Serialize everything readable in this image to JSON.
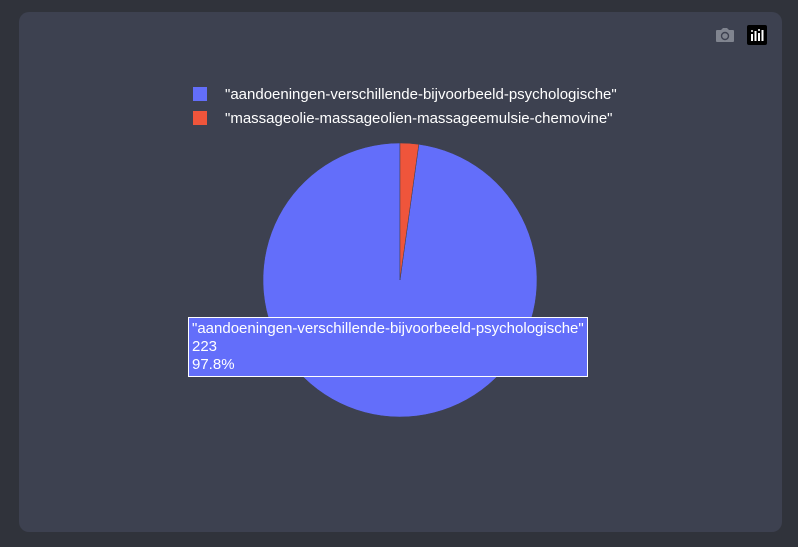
{
  "chart_data": {
    "type": "pie",
    "labels": [
      "\"aandoeningen-verschillende-bijvoorbeeld-psychologische\"",
      "\"massageolie-massageolien-massageemulsie-chemovine\""
    ],
    "values": [
      223,
      5
    ],
    "percent_labels": [
      "97.8%",
      ""
    ],
    "colors": [
      "#636efa",
      "#ef553b"
    ],
    "legend_placement": "top-center"
  },
  "tooltip": {
    "label": "\"aandoeningen-verschillende-bijvoorbeeld-psychologische\"",
    "value": "223",
    "percent": "97.8%"
  },
  "modebar": {
    "camera_icon": "camera-icon",
    "logo_icon": "plotly-logo-icon"
  }
}
